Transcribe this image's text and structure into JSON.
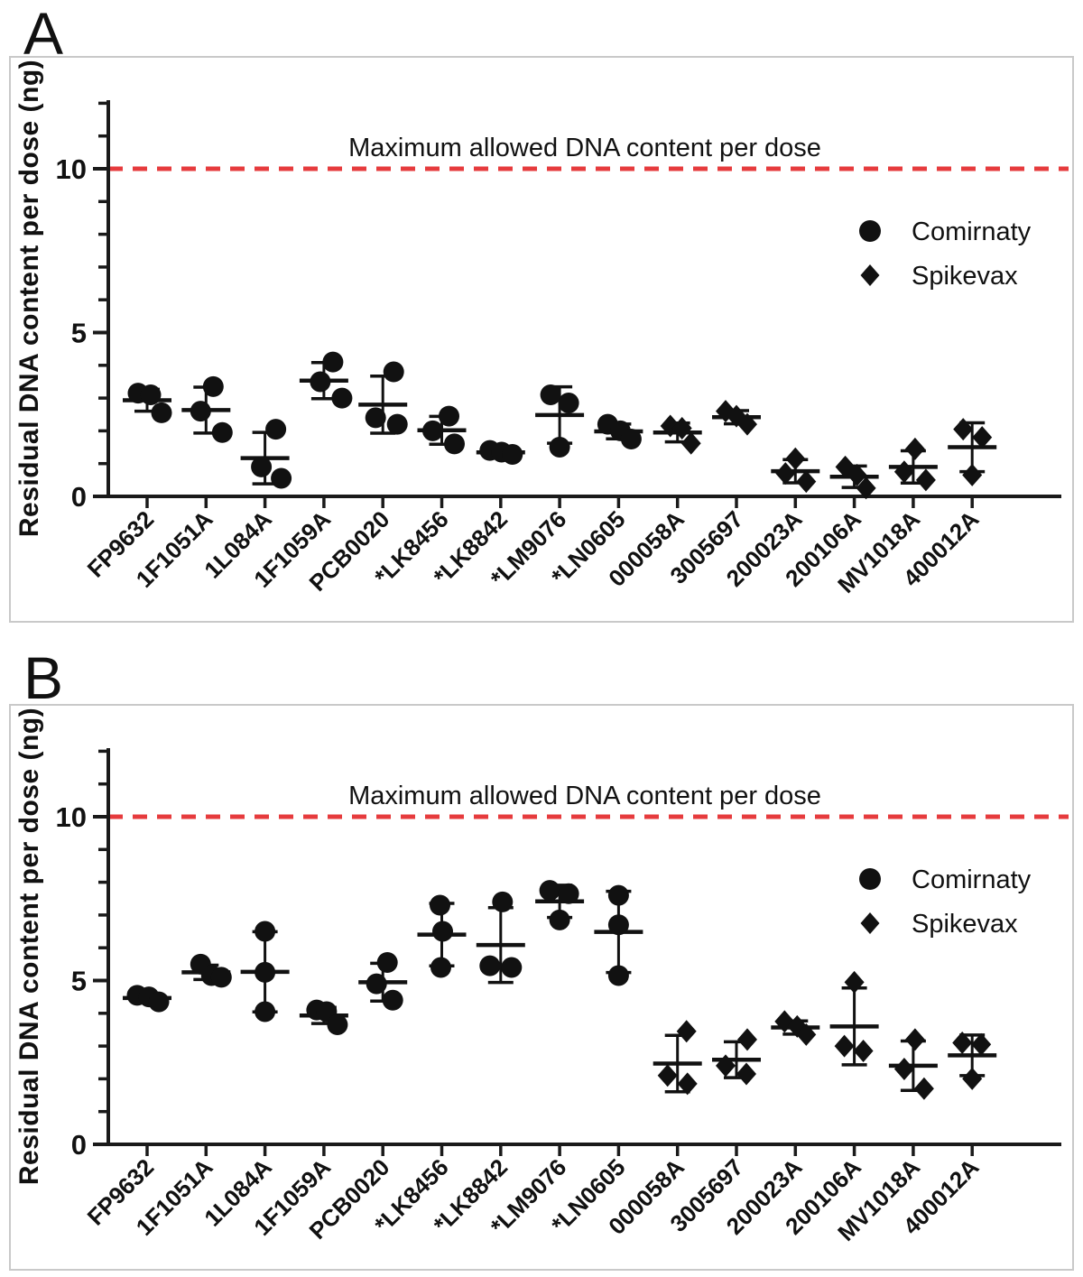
{
  "colors": {
    "marker": "#111111",
    "axis": "#1a1a1a",
    "threshold_red": "#e63b3d",
    "panel_border": "#c9c9c9"
  },
  "chart_data": [
    {
      "type": "scatter",
      "panel_label": "A",
      "title": "",
      "xlabel": "",
      "ylabel": "Residual DNA content per dose (ng)",
      "ylim": [
        0,
        12.1
      ],
      "ytick_major": [
        0,
        5,
        10
      ],
      "ytick_minor_step": 1,
      "grid": false,
      "legend_position": "upper right",
      "threshold": {
        "value": 10,
        "label": "Maximum allowed DNA content per dose"
      },
      "legend": [
        {
          "marker": "circle",
          "name": "Comirnaty"
        },
        {
          "marker": "diamond",
          "name": "Spikevax"
        }
      ],
      "categories": [
        "FP9632",
        "1F1051A",
        "1L084A",
        "1F1059A",
        "PCB0020",
        "*LK8456",
        "*LK8842",
        "*LM9076",
        "*LN0605",
        "000058A",
        "3005697",
        "200023A",
        "200106A",
        "MV1018A",
        "400012A"
      ],
      "groups": [
        {
          "lot": "FP9632",
          "vaccine": "Comirnaty",
          "marker": "circle",
          "values": [
            3.15,
            3.1,
            2.55
          ],
          "jitter": [
            -10,
            4,
            16
          ]
        },
        {
          "lot": "1F1051A",
          "vaccine": "Comirnaty",
          "marker": "circle",
          "values": [
            3.35,
            2.6,
            1.95
          ],
          "jitter": [
            8,
            -6,
            18
          ]
        },
        {
          "lot": "1L084A",
          "vaccine": "Comirnaty",
          "marker": "circle",
          "values": [
            2.05,
            0.9,
            0.55
          ],
          "jitter": [
            12,
            -4,
            18
          ]
        },
        {
          "lot": "1F1059A",
          "vaccine": "Comirnaty",
          "marker": "circle",
          "values": [
            4.1,
            3.5,
            3.0
          ],
          "jitter": [
            10,
            -4,
            20
          ]
        },
        {
          "lot": "PCB0020",
          "vaccine": "Comirnaty",
          "marker": "circle",
          "values": [
            3.8,
            2.4,
            2.2
          ],
          "jitter": [
            12,
            -8,
            16
          ]
        },
        {
          "lot": "*LK8456",
          "vaccine": "Comirnaty",
          "marker": "circle",
          "values": [
            2.45,
            2.0,
            1.6
          ],
          "jitter": [
            8,
            -10,
            14
          ]
        },
        {
          "lot": "*LK8842",
          "vaccine": "Comirnaty",
          "marker": "circle",
          "values": [
            1.4,
            1.35,
            1.28
          ],
          "jitter": [
            -12,
            1,
            13
          ]
        },
        {
          "lot": "*LM9076",
          "vaccine": "Comirnaty",
          "marker": "circle",
          "values": [
            3.1,
            2.85,
            1.5
          ],
          "jitter": [
            -10,
            10,
            0
          ]
        },
        {
          "lot": "*LN0605",
          "vaccine": "Comirnaty",
          "marker": "circle",
          "values": [
            2.2,
            2.0,
            1.75
          ],
          "jitter": [
            -12,
            2,
            14
          ]
        },
        {
          "lot": "000058A",
          "vaccine": "Spikevax",
          "marker": "diamond",
          "values": [
            2.15,
            2.08,
            1.62
          ],
          "jitter": [
            -8,
            5,
            15
          ]
        },
        {
          "lot": "3005697",
          "vaccine": "Spikevax",
          "marker": "diamond",
          "values": [
            2.6,
            2.45,
            2.2
          ],
          "jitter": [
            -12,
            0,
            12
          ]
        },
        {
          "lot": "200023A",
          "vaccine": "Spikevax",
          "marker": "diamond",
          "values": [
            1.15,
            0.7,
            0.45
          ],
          "jitter": [
            0,
            -11,
            12
          ]
        },
        {
          "lot": "200106A",
          "vaccine": "Spikevax",
          "marker": "diamond",
          "values": [
            0.9,
            0.65,
            0.25
          ],
          "jitter": [
            -10,
            3,
            13
          ]
        },
        {
          "lot": "MV1018A",
          "vaccine": "Spikevax",
          "marker": "diamond",
          "values": [
            1.45,
            0.75,
            0.5
          ],
          "jitter": [
            2,
            -10,
            14
          ]
        },
        {
          "lot": "400012A",
          "vaccine": "Spikevax",
          "marker": "diamond",
          "values": [
            2.05,
            1.8,
            0.65
          ],
          "jitter": [
            -10,
            11,
            0
          ]
        }
      ]
    },
    {
      "type": "scatter",
      "panel_label": "B",
      "title": "",
      "xlabel": "",
      "ylabel": "Residual DNA content per dose (ng)",
      "ylim": [
        0,
        12.1
      ],
      "ytick_major": [
        0,
        5,
        10
      ],
      "ytick_minor_step": 1,
      "grid": false,
      "legend_position": "upper right",
      "threshold": {
        "value": 10,
        "label": "Maximum allowed DNA content per dose"
      },
      "legend": [
        {
          "marker": "circle",
          "name": "Comirnaty"
        },
        {
          "marker": "diamond",
          "name": "Spikevax"
        }
      ],
      "categories": [
        "FP9632",
        "1F1051A",
        "1L084A",
        "1F1059A",
        "PCB0020",
        "*LK8456",
        "*LK8842",
        "*LM9076",
        "*LN0605",
        "000058A",
        "3005697",
        "200023A",
        "200106A",
        "MV1018A",
        "400012A"
      ],
      "groups": [
        {
          "lot": "FP9632",
          "vaccine": "Comirnaty",
          "marker": "circle",
          "values": [
            4.55,
            4.5,
            4.35
          ],
          "jitter": [
            -11,
            2,
            13
          ]
        },
        {
          "lot": "1F1051A",
          "vaccine": "Comirnaty",
          "marker": "circle",
          "values": [
            5.5,
            5.15,
            5.1
          ],
          "jitter": [
            -6,
            6,
            17
          ]
        },
        {
          "lot": "1L084A",
          "vaccine": "Comirnaty",
          "marker": "circle",
          "values": [
            6.5,
            5.25,
            4.05
          ],
          "jitter": [
            0,
            0,
            0
          ]
        },
        {
          "lot": "1F1059A",
          "vaccine": "Comirnaty",
          "marker": "circle",
          "values": [
            4.1,
            4.05,
            3.65
          ],
          "jitter": [
            -8,
            3,
            15
          ]
        },
        {
          "lot": "PCB0020",
          "vaccine": "Comirnaty",
          "marker": "circle",
          "values": [
            5.55,
            4.9,
            4.4
          ],
          "jitter": [
            5,
            -7,
            11
          ]
        },
        {
          "lot": "*LK8456",
          "vaccine": "Comirnaty",
          "marker": "circle",
          "values": [
            7.3,
            6.5,
            5.4
          ],
          "jitter": [
            -2,
            1,
            -1
          ]
        },
        {
          "lot": "*LK8842",
          "vaccine": "Comirnaty",
          "marker": "circle",
          "values": [
            7.4,
            5.45,
            5.4
          ],
          "jitter": [
            2,
            -12,
            12
          ]
        },
        {
          "lot": "*LM9076",
          "vaccine": "Comirnaty",
          "marker": "circle",
          "values": [
            7.75,
            7.65,
            6.85
          ],
          "jitter": [
            -11,
            10,
            0
          ]
        },
        {
          "lot": "*LN0605",
          "vaccine": "Comirnaty",
          "marker": "circle",
          "values": [
            7.6,
            6.7,
            5.15
          ],
          "jitter": [
            0,
            0,
            0
          ]
        },
        {
          "lot": "000058A",
          "vaccine": "Spikevax",
          "marker": "diamond",
          "values": [
            3.45,
            2.1,
            1.85
          ],
          "jitter": [
            10,
            -11,
            11
          ]
        },
        {
          "lot": "3005697",
          "vaccine": "Spikevax",
          "marker": "diamond",
          "values": [
            3.2,
            2.4,
            2.15
          ],
          "jitter": [
            12,
            -12,
            11
          ]
        },
        {
          "lot": "200023A",
          "vaccine": "Spikevax",
          "marker": "diamond",
          "values": [
            3.75,
            3.6,
            3.35
          ],
          "jitter": [
            -12,
            2,
            12
          ]
        },
        {
          "lot": "200106A",
          "vaccine": "Spikevax",
          "marker": "diamond",
          "values": [
            4.95,
            3.0,
            2.85
          ],
          "jitter": [
            0,
            -11,
            10
          ]
        },
        {
          "lot": "MV1018A",
          "vaccine": "Spikevax",
          "marker": "diamond",
          "values": [
            3.2,
            2.3,
            1.7
          ],
          "jitter": [
            2,
            -10,
            12
          ]
        },
        {
          "lot": "400012A",
          "vaccine": "Spikevax",
          "marker": "diamond",
          "values": [
            3.1,
            3.05,
            2.0
          ],
          "jitter": [
            -11,
            10,
            0
          ]
        }
      ]
    }
  ]
}
